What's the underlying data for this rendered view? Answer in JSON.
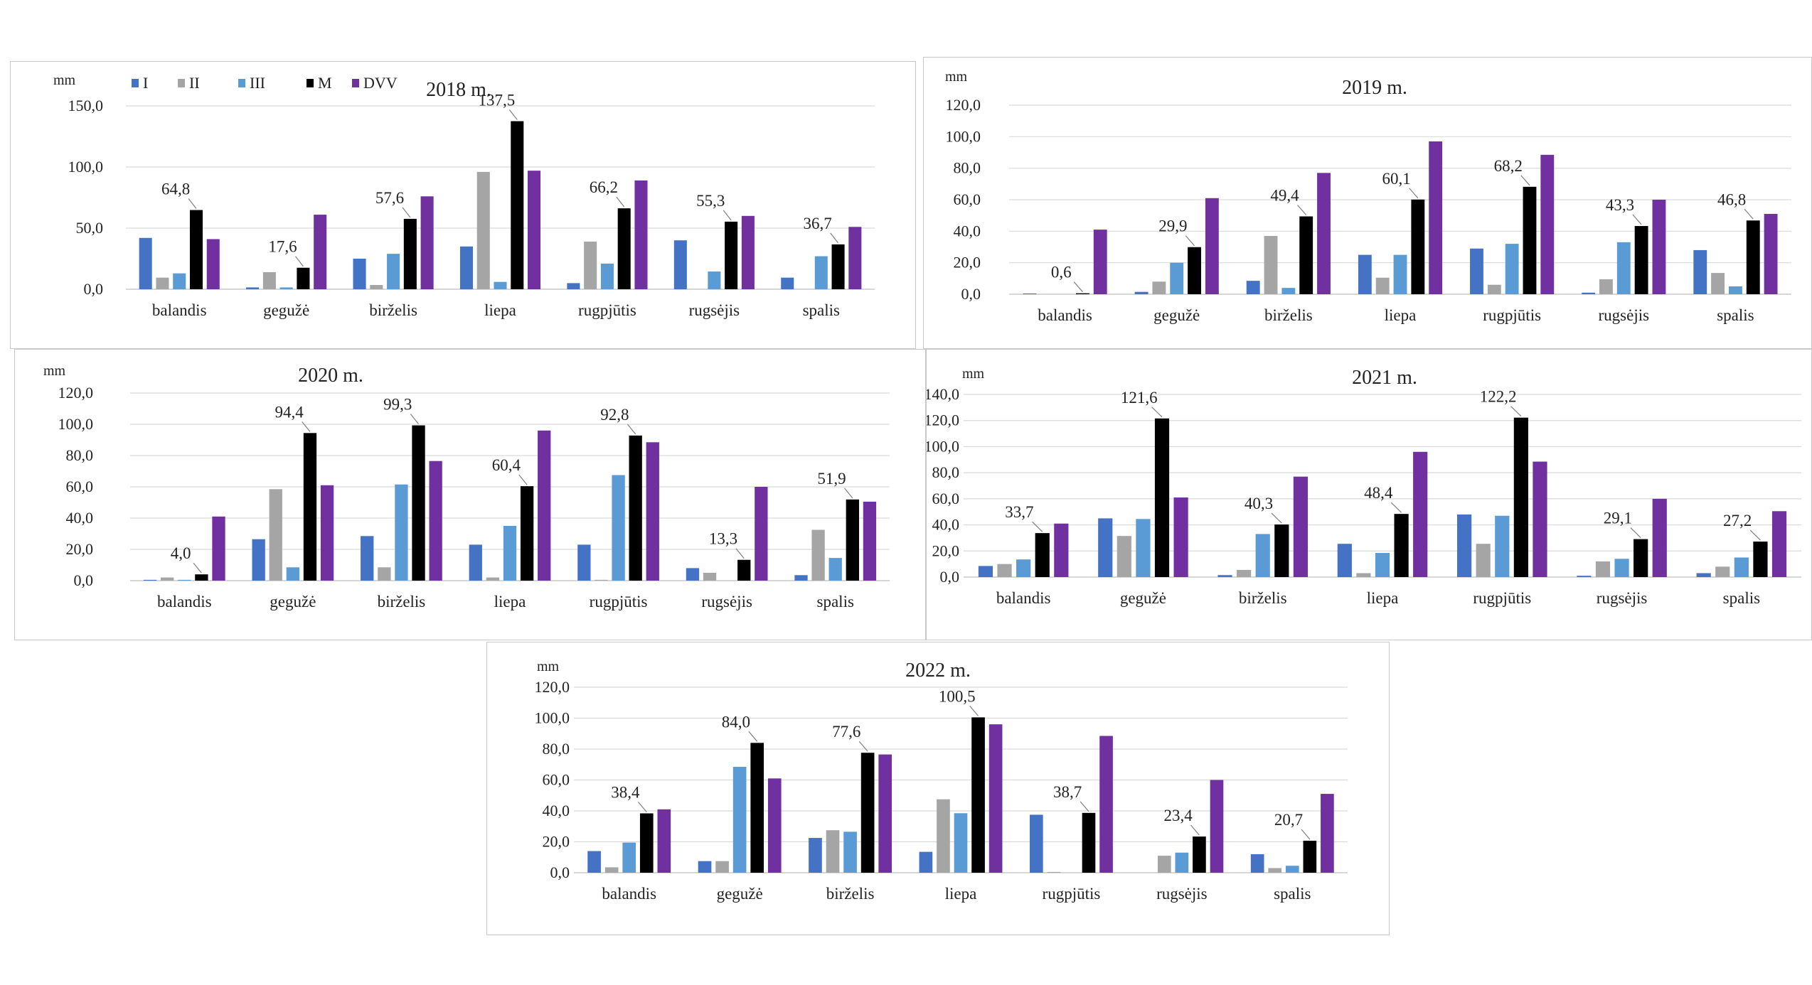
{
  "legend": [
    {
      "name": "I",
      "color": "#4472c4"
    },
    {
      "name": "II",
      "color": "#a5a5a5"
    },
    {
      "name": "III",
      "color": "#5b9bd5"
    },
    {
      "name": "M",
      "color": "#000000"
    },
    {
      "name": "DVV",
      "color": "#7030a0"
    }
  ],
  "chart_data": [
    {
      "type": "bar",
      "title": "2018 m.",
      "ylabel": "mm",
      "ylim": [
        0,
        150
      ],
      "yticks": [
        "0,0",
        "50,0",
        "100,0",
        "150,0"
      ],
      "ytick_values": [
        0,
        50,
        100,
        150
      ],
      "categories": [
        "balandis",
        "gegužė",
        "birželis",
        "liepa",
        "rugpjūtis",
        "rugsėjis",
        "spalis"
      ],
      "series": [
        {
          "name": "I",
          "values": [
            42,
            1.5,
            25,
            35,
            5,
            40,
            9.5
          ]
        },
        {
          "name": "II",
          "values": [
            9.5,
            14,
            3.5,
            96,
            39,
            0,
            0
          ]
        },
        {
          "name": "III",
          "values": [
            13,
            1.5,
            29,
            6,
            21,
            14.5,
            27
          ]
        },
        {
          "name": "M",
          "values": [
            64.8,
            17.6,
            57.6,
            137.5,
            66.2,
            55.3,
            36.7
          ]
        },
        {
          "name": "DVV",
          "values": [
            41,
            61,
            76,
            97,
            89,
            60,
            51
          ]
        }
      ],
      "labels": [
        "64,8",
        "17,6",
        "57,6",
        "137,5",
        "66,2",
        "55,3",
        "36,7"
      ]
    },
    {
      "type": "bar",
      "title": "2019 m.",
      "ylabel": "mm",
      "ylim": [
        0,
        120
      ],
      "yticks": [
        "0,0",
        "20,0",
        "40,0",
        "60,0",
        "80,0",
        "100,0",
        "120,0"
      ],
      "ytick_values": [
        0,
        20,
        40,
        60,
        80,
        100,
        120
      ],
      "categories": [
        "balandis",
        "gegužė",
        "birželis",
        "liepa",
        "rugpjūtis",
        "rugsėjis",
        "spalis"
      ],
      "series": [
        {
          "name": "I",
          "values": [
            0.5,
            1.5,
            8.5,
            25,
            29,
            1,
            28
          ]
        },
        {
          "name": "II",
          "values": [
            0,
            8,
            37,
            10.5,
            6,
            9.5,
            13.5
          ]
        },
        {
          "name": "III",
          "values": [
            0,
            20,
            4,
            25,
            32,
            33,
            5
          ]
        },
        {
          "name": "M",
          "values": [
            0.6,
            29.9,
            49.4,
            60.1,
            68.2,
            43.3,
            46.8
          ]
        },
        {
          "name": "DVV",
          "values": [
            41,
            61,
            77,
            97,
            88.5,
            60,
            51
          ]
        }
      ],
      "labels": [
        "0,6",
        "29,9",
        "49,4",
        "60,1",
        "68,2",
        "43,3",
        "46,8"
      ]
    },
    {
      "type": "bar",
      "title": "2020 m.",
      "ylabel": "mm",
      "ylim": [
        0,
        120
      ],
      "yticks": [
        "0,0",
        "20,0",
        "40,0",
        "60,0",
        "80,0",
        "100,0",
        "120,0"
      ],
      "ytick_values": [
        0,
        20,
        40,
        60,
        80,
        100,
        120
      ],
      "categories": [
        "balandis",
        "gegužė",
        "birželis",
        "liepa",
        "rugpjūtis",
        "rugsėjis",
        "spalis"
      ],
      "series": [
        {
          "name": "I",
          "values": [
            0.5,
            26.5,
            28.5,
            23,
            23,
            8,
            3.5
          ]
        },
        {
          "name": "II",
          "values": [
            2,
            58.5,
            8.5,
            2,
            0.5,
            5,
            32.5
          ]
        },
        {
          "name": "III",
          "values": [
            0.5,
            8.5,
            61.5,
            35,
            67.5,
            0,
            14.5
          ]
        },
        {
          "name": "M",
          "values": [
            4.0,
            94.4,
            99.3,
            60.4,
            92.8,
            13.3,
            51.9
          ]
        },
        {
          "name": "DVV",
          "values": [
            41,
            61,
            76.5,
            96,
            88.5,
            60,
            50.5
          ]
        }
      ],
      "labels": [
        "4,0",
        "94,4",
        "99,3",
        "60,4",
        "92,8",
        "13,3",
        "51,9"
      ]
    },
    {
      "type": "bar",
      "title": "2021 m.",
      "ylabel": "mm",
      "ylim": [
        0,
        140
      ],
      "yticks": [
        "0,0",
        "20,0",
        "40,0",
        "60,0",
        "80,0",
        "100,0",
        "120,0",
        "140,0"
      ],
      "ytick_values": [
        0,
        20,
        40,
        60,
        80,
        100,
        120,
        140
      ],
      "categories": [
        "balandis",
        "gegužė",
        "birželis",
        "liepa",
        "rugpjūtis",
        "rugsėjis",
        "spalis"
      ],
      "series": [
        {
          "name": "I",
          "values": [
            8.5,
            45,
            1.5,
            25.5,
            48,
            1,
            3
          ]
        },
        {
          "name": "II",
          "values": [
            10,
            31.5,
            5.5,
            3,
            25.5,
            12,
            8
          ]
        },
        {
          "name": "III",
          "values": [
            13.5,
            44.5,
            33,
            18.5,
            47,
            14,
            15
          ]
        },
        {
          "name": "M",
          "values": [
            33.7,
            121.6,
            40.3,
            48.4,
            122.2,
            29.1,
            27.2
          ]
        },
        {
          "name": "DVV",
          "values": [
            41,
            61,
            77,
            96,
            88.5,
            60,
            50.5
          ]
        }
      ],
      "labels": [
        "33,7",
        "121,6",
        "40,3",
        "48,4",
        "122,2",
        "29,1",
        "27,2"
      ]
    },
    {
      "type": "bar",
      "title": "2022 m.",
      "ylabel": "mm",
      "ylim": [
        0,
        120
      ],
      "yticks": [
        "0,0",
        "20,0",
        "40,0",
        "60,0",
        "80,0",
        "100,0",
        "120,0"
      ],
      "ytick_values": [
        0,
        20,
        40,
        60,
        80,
        100,
        120
      ],
      "categories": [
        "balandis",
        "gegužė",
        "birželis",
        "liepa",
        "rugpjūtis",
        "rugsėjis",
        "spalis"
      ],
      "series": [
        {
          "name": "I",
          "values": [
            14,
            7.5,
            22.5,
            13.5,
            37.5,
            0,
            12
          ]
        },
        {
          "name": "II",
          "values": [
            3.5,
            7.5,
            27.5,
            47.5,
            0.5,
            11,
            3
          ]
        },
        {
          "name": "III",
          "values": [
            19.5,
            68.5,
            26.5,
            38.5,
            0,
            13,
            4.5
          ]
        },
        {
          "name": "M",
          "values": [
            38.4,
            84.0,
            77.6,
            100.5,
            38.7,
            23.4,
            20.7
          ]
        },
        {
          "name": "DVV",
          "values": [
            41,
            61,
            76.5,
            96,
            88.5,
            60,
            51
          ]
        }
      ],
      "labels": [
        "38,4",
        "84,0",
        "77,6",
        "100,5",
        "38,7",
        "23,4",
        "20,7"
      ]
    }
  ]
}
